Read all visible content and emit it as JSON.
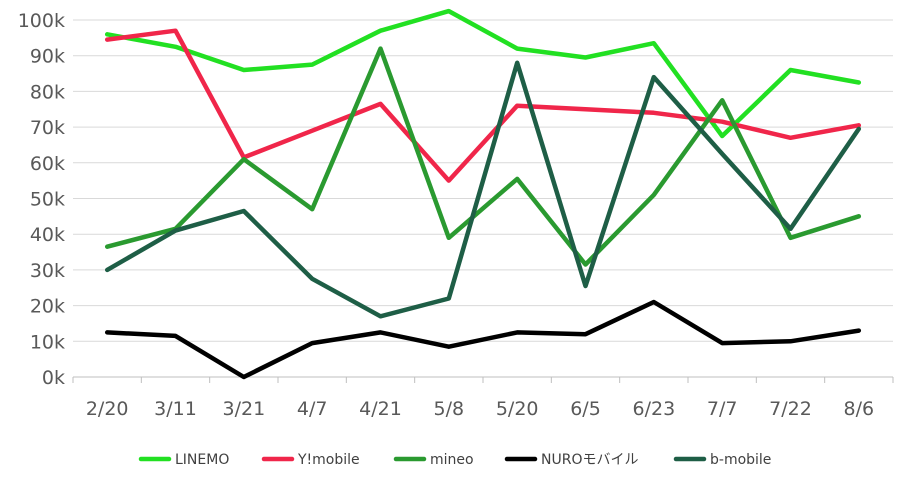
{
  "chart_data": {
    "type": "line",
    "categories": [
      "2/20",
      "3/11",
      "3/21",
      "4/7",
      "4/21",
      "5/8",
      "5/20",
      "6/5",
      "6/23",
      "7/7",
      "7/22",
      "8/6"
    ],
    "y_ticks": [
      "0k",
      "10k",
      "20k",
      "30k",
      "40k",
      "50k",
      "60k",
      "70k",
      "80k",
      "90k",
      "100k"
    ],
    "ylim": [
      0,
      100000
    ],
    "grid": true,
    "legend_position": "bottom",
    "series": [
      {
        "name": "LINEMO",
        "color": "#22e022",
        "values": [
          96000,
          92500,
          86000,
          87500,
          97000,
          102500,
          92000,
          89500,
          93500,
          67500,
          86000,
          82500
        ]
      },
      {
        "name": "Y!mobile",
        "color": "#f0264a",
        "values": [
          94500,
          97000,
          61500,
          69000,
          76500,
          55000,
          76000,
          75000,
          74000,
          71500,
          67000,
          70500
        ]
      },
      {
        "name": "mineo",
        "color": "#2a9a30",
        "values": [
          36500,
          41500,
          61000,
          47000,
          92000,
          39000,
          55500,
          31500,
          51000,
          77500,
          39000,
          45000
        ]
      },
      {
        "name": "NUROモバイル",
        "color": "#000000",
        "values": [
          12500,
          11500,
          0,
          9500,
          12500,
          8500,
          12500,
          12000,
          21000,
          9500,
          10000,
          13000
        ]
      },
      {
        "name": "b-mobile",
        "color": "#1e5e46",
        "values": [
          30000,
          41000,
          46500,
          27500,
          17000,
          22000,
          88000,
          25500,
          84000,
          62500,
          41500,
          69500
        ]
      }
    ]
  }
}
